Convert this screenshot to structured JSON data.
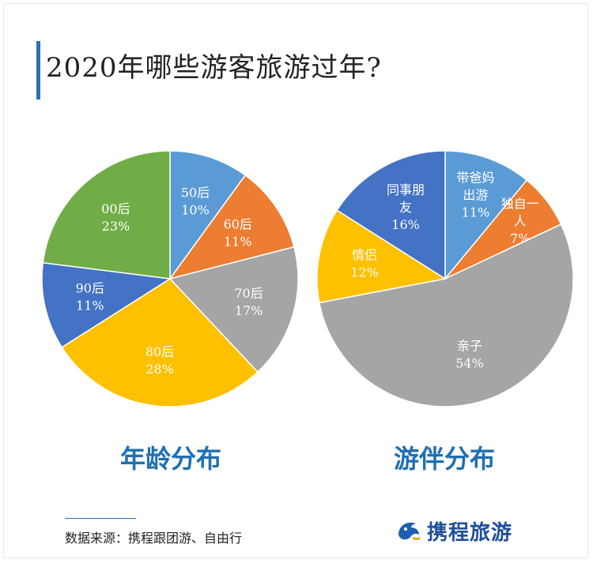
{
  "title": "2020年哪些游客旅游过年?",
  "source_note": "数据来源：携程跟团游、自由行",
  "logo": {
    "text": "携程旅游",
    "mark": "dolphin-logo"
  },
  "colors": {
    "accent": "#2e6fb6",
    "blue_light": "#5b9bd5",
    "orange": "#ed7d31",
    "gray": "#a5a5a5",
    "yellow": "#ffc000",
    "blue_dark": "#4472c4",
    "green": "#70ad47"
  },
  "chart_data": [
    {
      "type": "pie",
      "caption": "年龄分布",
      "slices": [
        {
          "label": [
            "50后"
          ],
          "value": 10,
          "pct": "10%",
          "color": "#5b9bd5"
        },
        {
          "label": [
            "60后"
          ],
          "value": 11,
          "pct": "11%",
          "color": "#ed7d31"
        },
        {
          "label": [
            "70后"
          ],
          "value": 17,
          "pct": "17%",
          "color": "#a5a5a5"
        },
        {
          "label": [
            "80后"
          ],
          "value": 28,
          "pct": "28%",
          "color": "#ffc000"
        },
        {
          "label": [
            "90后"
          ],
          "value": 11,
          "pct": "11%",
          "color": "#4472c4"
        },
        {
          "label": [
            "00后"
          ],
          "value": 23,
          "pct": "23%",
          "color": "#70ad47"
        }
      ]
    },
    {
      "type": "pie",
      "caption": "游伴分布",
      "slices": [
        {
          "label": [
            "带爸妈",
            "出游"
          ],
          "value": 11,
          "pct": "11%",
          "color": "#5b9bd5"
        },
        {
          "label": [
            "独自一",
            "人"
          ],
          "value": 7,
          "pct": "7%",
          "color": "#ed7d31"
        },
        {
          "label": [
            "亲子"
          ],
          "value": 54,
          "pct": "54%",
          "color": "#a5a5a5"
        },
        {
          "label": [
            "情侣"
          ],
          "value": 12,
          "pct": "12%",
          "color": "#ffc000"
        },
        {
          "label": [
            "同事朋",
            "友"
          ],
          "value": 16,
          "pct": "16%",
          "color": "#4472c4"
        }
      ]
    }
  ]
}
